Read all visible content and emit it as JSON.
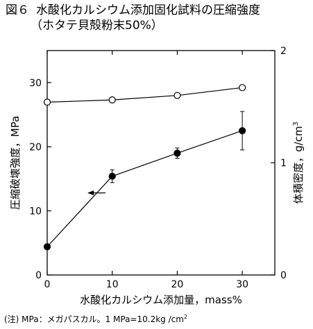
{
  "figure": {
    "number": "図６",
    "title_line1": "水酸化カルシウム添加固化試料の圧縮強度",
    "title_line2": "（ホタテ貝殻粉末50%）"
  },
  "note": {
    "text": "(注) MPa：メガパスカル。1 MPa=10.2kg /cm",
    "sup": "2"
  },
  "chart_data": {
    "type": "line",
    "xlabel": "水酸化カルシウム添加量，mass%",
    "ylabel_left": "圧縮破壊強度，MPa",
    "ylabel_right": "体積密度，g/cm",
    "ylabel_right_sup": "3",
    "xlim": [
      0,
      35
    ],
    "ylim_left": [
      0,
      35
    ],
    "ylim_right": [
      0,
      2
    ],
    "x_ticks": [
      0,
      10,
      20,
      30
    ],
    "y_ticks_left": [
      0,
      10,
      20,
      30
    ],
    "y_ticks_right": [
      0,
      1,
      2
    ],
    "grid": false,
    "series": [
      {
        "axis": "left",
        "marker": "filled-circle",
        "x": [
          0,
          10,
          20,
          30
        ],
        "y": [
          4.4,
          15.4,
          19.0,
          22.5
        ],
        "error": [
          0,
          1.0,
          0.8,
          3.0
        ]
      },
      {
        "axis": "right",
        "marker": "open-circle",
        "x": [
          0,
          10,
          20,
          30
        ],
        "y": [
          1.54,
          1.56,
          1.6,
          1.67
        ]
      }
    ],
    "annotations": [
      {
        "type": "arrow",
        "direction": "left",
        "target_axis": "left",
        "at_x": 6.2,
        "at_y": 12.8
      }
    ]
  }
}
